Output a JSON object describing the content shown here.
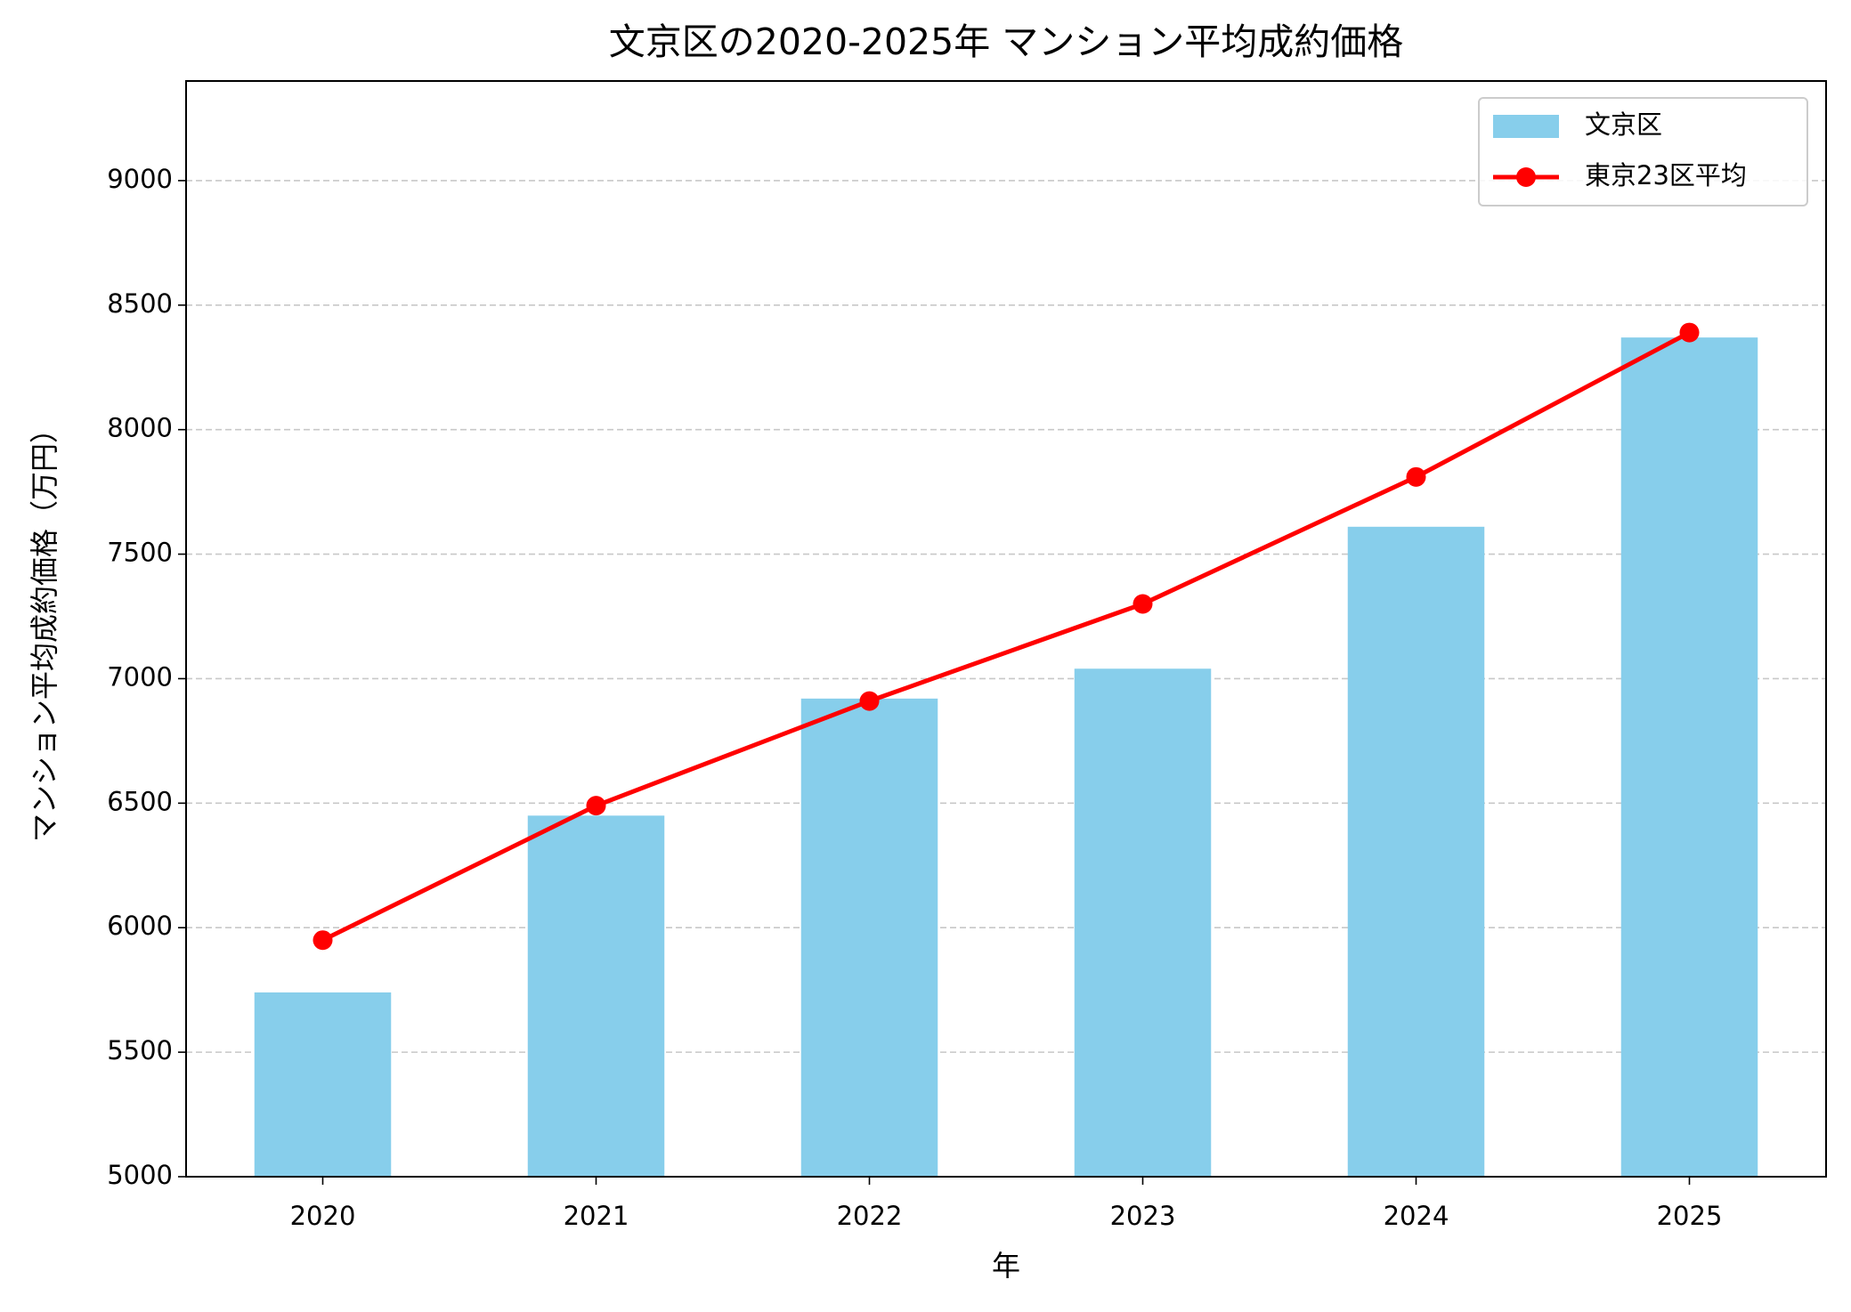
{
  "chart_data": {
    "type": "bar_line",
    "title": "文京区の2020-2025年 マンション平均成約価格",
    "x_label": "年",
    "y_label": "マンション平均成約価格（万円）",
    "categories": [
      "2020",
      "2021",
      "2022",
      "2023",
      "2024",
      "2025"
    ],
    "series": [
      {
        "name": "文京区",
        "type": "bar",
        "color": "#87ceeb",
        "values": [
          5740,
          6450,
          6920,
          7040,
          7610,
          8370
        ]
      },
      {
        "name": "東京23区平均",
        "type": "line",
        "color": "#ff0000",
        "values": [
          5950,
          6490,
          6910,
          7300,
          7810,
          8390
        ]
      }
    ],
    "ylim": [
      5000,
      9400
    ],
    "yticks": [
      5000,
      5500,
      6000,
      6500,
      7000,
      7500,
      8000,
      8500,
      9000
    ],
    "grid": true,
    "legend": "upper-right"
  }
}
